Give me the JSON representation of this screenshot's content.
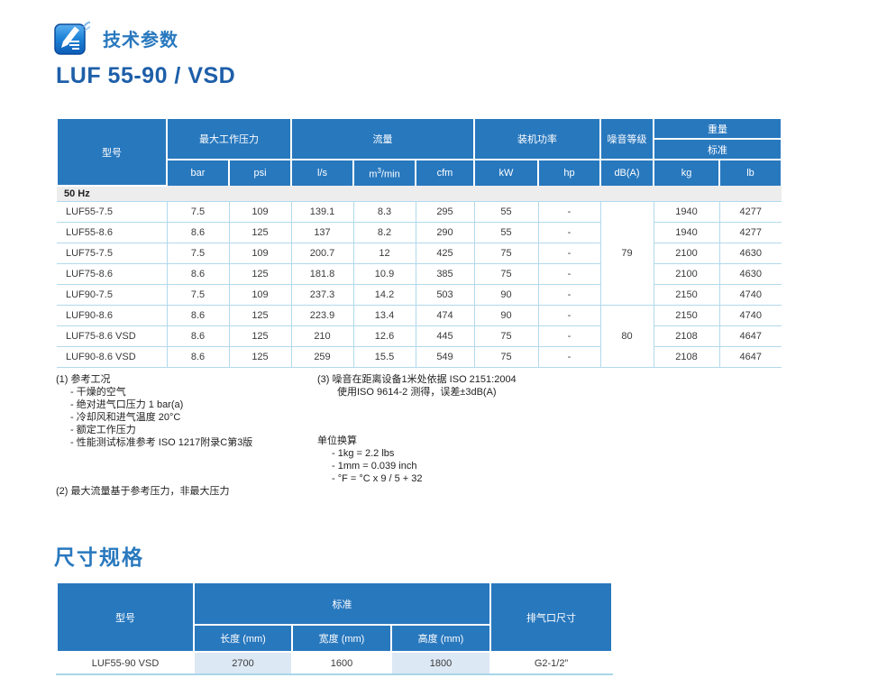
{
  "page": {
    "section1_title": "技术参数",
    "model_title": "LUF 55-90 / VSD",
    "section2_title": "尺寸规格"
  },
  "colors": {
    "header_blue": "#2878be",
    "title_dark_blue": "#1e5fa9",
    "row_border_blue": "#b2d9ec",
    "shaded_cell_blue": "#dce8f4",
    "group_row_gray": "#ededed"
  },
  "icons": {
    "edit_note_icon": "pen-on-document"
  },
  "spec_table": {
    "headers": {
      "model": "型号",
      "max_pressure": "最大工作压力",
      "flow": "流量",
      "power": "装机功率",
      "noise": "噪音等级",
      "weight": "重量",
      "standard": "标准",
      "unit_bar": "bar",
      "unit_psi": "psi",
      "unit_ls": "l/s",
      "unit_m3min_base": "m",
      "unit_m3min_sup": "3",
      "unit_m3min_rest": "/min",
      "unit_cfm": "cfm",
      "unit_kw": "kW",
      "unit_hp": "hp",
      "unit_dba": "dB(A)",
      "unit_kg": "kg",
      "unit_lb": "lb"
    },
    "group_label": "50 Hz",
    "rows": [
      [
        "LUF55-7.5",
        "7.5",
        "109",
        "139.1",
        "8.3",
        "295",
        "55",
        "-",
        "1940",
        "4277"
      ],
      [
        "LUF55-8.6",
        "8.6",
        "125",
        "137",
        "8.2",
        "290",
        "55",
        "-",
        "1940",
        "4277"
      ],
      [
        "LUF75-7.5",
        "7.5",
        "109",
        "200.7",
        "12",
        "425",
        "75",
        "-",
        "2100",
        "4630"
      ],
      [
        "LUF75-8.6",
        "8.6",
        "125",
        "181.8",
        "10.9",
        "385",
        "75",
        "-",
        "2100",
        "4630"
      ],
      [
        "LUF90-7.5",
        "7.5",
        "109",
        "237.3",
        "14.2",
        "503",
        "90",
        "-",
        "2150",
        "4740"
      ],
      [
        "LUF90-8.6",
        "8.6",
        "125",
        "223.9",
        "13.4",
        "474",
        "90",
        "-",
        "2150",
        "4740"
      ],
      [
        "LUF75-8.6 VSD",
        "8.6",
        "125",
        "210",
        "12.6",
        "445",
        "75",
        "-",
        "2108",
        "4647"
      ],
      [
        "LUF90-8.6 VSD",
        "8.6",
        "125",
        "259",
        "15.5",
        "549",
        "75",
        "-",
        "2108",
        "4647"
      ]
    ],
    "noise_spans": [
      {
        "value": "79",
        "start": 0,
        "span": 5
      },
      {
        "value": "80",
        "start": 5,
        "span": 3
      }
    ]
  },
  "footnotes": {
    "note1": {
      "title": "(1) 参考工况",
      "items": [
        "- 干燥的空气",
        "- 绝对进气口压力 1 bar(a)",
        "- 冷却风和进气温度 20°C",
        "- 额定工作压力",
        "- 性能测试标准参考 ISO 1217附录C第3版"
      ]
    },
    "note2": {
      "title": "(2) 最大流量基于参考压力，非最大压力"
    },
    "note3": {
      "lines": [
        "(3) 噪音在距离设备1米处依据 ISO 2151:2004",
        "使用ISO 9614-2 测得，误差±3dB(A)"
      ]
    },
    "unit_conversion": {
      "title": "单位换算",
      "items": [
        "- 1kg = 2.2 lbs",
        "- 1mm = 0.039 inch",
        "- °F = °C x 9 / 5 + 32"
      ]
    }
  },
  "dims_table": {
    "headers": {
      "model": "型号",
      "standard": "标准",
      "length": "长度 (mm)",
      "width": "宽度 (mm)",
      "height": "高度 (mm)",
      "outlet": "排气口尺寸"
    },
    "row": {
      "model": "LUF55-90 VSD",
      "length": "2700",
      "width": "1600",
      "height": "1800",
      "outlet": "G2-1/2”"
    }
  }
}
